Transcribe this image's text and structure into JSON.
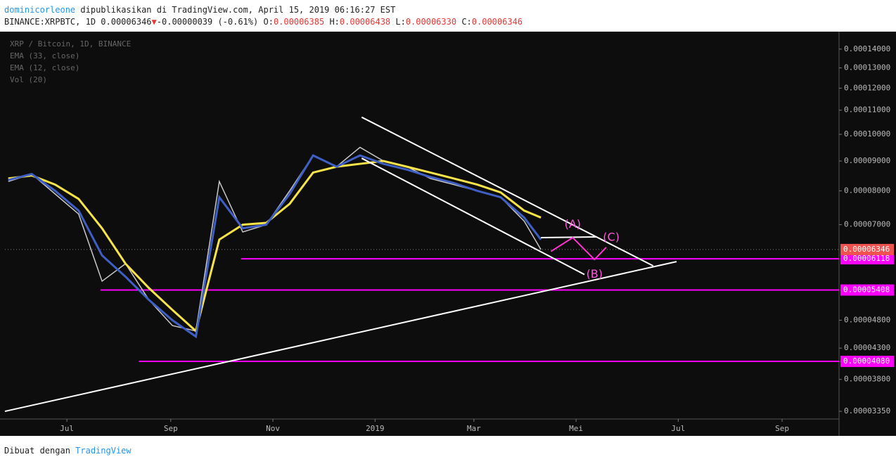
{
  "header": {
    "author": "dominicorleone",
    "published": "dipublikasikan di TradingView.com, April 15, 2019 06:16:27 EST",
    "symbol": "BINANCE:XRPBTC, 1D",
    "last": "0.00006346",
    "arrow": "▼",
    "change": "-0.00000039 (-0.61%)",
    "open_label": "O:",
    "open": "0.00006385",
    "high_label": "H:",
    "high": "0.00006438",
    "low_label": "L:",
    "low": "0.00006330",
    "close_label": "C:",
    "close": "0.00006346"
  },
  "chart_data": {
    "type": "line",
    "legend_lines": [
      "XRP / Bitcoin, 1D, BINANCE",
      "EMA (33, close)",
      "EMA (12, close)",
      "Vol (20)"
    ],
    "x": [
      -35,
      -21,
      -7,
      7,
      21,
      35,
      49,
      63,
      77,
      91,
      105,
      119,
      133,
      147,
      161,
      175,
      189,
      203,
      217,
      231,
      245,
      259,
      273,
      283
    ],
    "series": [
      {
        "name": "XRP / Bitcoin",
        "color": "#c8c8c8",
        "values": [
          8.3e-05,
          8.55e-05,
          7.9e-05,
          7.3e-05,
          5.6e-05,
          6e-05,
          5.2e-05,
          4.7e-05,
          4.6e-05,
          8.3e-05,
          6.8e-05,
          7e-05,
          8e-05,
          9.2e-05,
          8.8e-05,
          9.5e-05,
          9e-05,
          8.8e-05,
          8.4e-05,
          8.2e-05,
          8e-05,
          7.8e-05,
          7.1e-05,
          6.346e-05
        ]
      },
      {
        "name": "EMA (33, close)",
        "color": "#f7e34a",
        "values": [
          8.4e-05,
          8.5e-05,
          8.2e-05,
          7.75e-05,
          6.9e-05,
          6e-05,
          5.45e-05,
          5e-05,
          4.6e-05,
          6.6e-05,
          7e-05,
          7.05e-05,
          7.6e-05,
          8.6e-05,
          8.8e-05,
          8.9e-05,
          9e-05,
          8.8e-05,
          8.6e-05,
          8.4e-05,
          8.2e-05,
          7.95e-05,
          7.4e-05,
          7.2e-05
        ]
      },
      {
        "name": "EMA (12, close)",
        "color": "#3f5fc4",
        "values": [
          8.35e-05,
          8.55e-05,
          8e-05,
          7.4e-05,
          6.2e-05,
          5.7e-05,
          5.2e-05,
          4.8e-05,
          4.5e-05,
          7.8e-05,
          6.9e-05,
          7e-05,
          7.9e-05,
          9.2e-05,
          8.8e-05,
          9.2e-05,
          8.9e-05,
          8.7e-05,
          8.45e-05,
          8.25e-05,
          8e-05,
          7.8e-05,
          7.2e-05,
          6.6e-05
        ]
      }
    ],
    "xlim": [
      -37,
      461
    ],
    "xticks": [
      {
        "value": 0,
        "label": "Jul"
      },
      {
        "value": 62,
        "label": "Sep"
      },
      {
        "value": 123,
        "label": "Nov"
      },
      {
        "value": 184,
        "label": "2019"
      },
      {
        "value": 243,
        "label": "Mar"
      },
      {
        "value": 304,
        "label": "Mei"
      },
      {
        "value": 365,
        "label": "Jul"
      },
      {
        "value": 427,
        "label": "Sep"
      }
    ],
    "ylim": [
      3.25e-05,
      0.00015
    ],
    "yscale": "log",
    "grid": false,
    "yticks": [
      {
        "value": 0.00014,
        "label": "0.00014000"
      },
      {
        "value": 0.00013,
        "label": "0.00013000"
      },
      {
        "value": 0.00012,
        "label": "0.00012000"
      },
      {
        "value": 0.00011,
        "label": "0.00011000"
      },
      {
        "value": 0.0001,
        "label": "0.00010000"
      },
      {
        "value": 9e-05,
        "label": "0.00009000"
      },
      {
        "value": 8e-05,
        "label": "0.00008000"
      },
      {
        "value": 7e-05,
        "label": "0.00007000"
      },
      {
        "value": 4.8e-05,
        "label": "0.00004800"
      },
      {
        "value": 4.3e-05,
        "label": "0.00004300"
      },
      {
        "value": 3.8e-05,
        "label": "0.00003800"
      },
      {
        "value": 3.35e-05,
        "label": "0.00003350"
      }
    ],
    "current_price": {
      "value": 6.346e-05,
      "label": "0.00006346",
      "color": "#ef5350"
    },
    "levels": [
      {
        "value": 6.118e-05,
        "label": "0.00006118",
        "start": 104,
        "color": "#ff00ff"
      },
      {
        "value": 5.408e-05,
        "label": "0.00005408",
        "start": 20,
        "color": "#ff00ff"
      },
      {
        "value": 4.08e-05,
        "label": "0.00004080",
        "start": 43,
        "color": "#ff00ff"
      }
    ],
    "trendlines": [
      {
        "x": [
          176,
          350
        ],
        "y": [
          0.000107,
          5.95e-05
        ],
        "color": "#ffffff"
      },
      {
        "x": [
          176,
          309
        ],
        "y": [
          9.1e-05,
          5.75e-05
        ],
        "color": "#ffffff"
      },
      {
        "x": [
          -37,
          364
        ],
        "y": [
          3.35e-05,
          6.05e-05
        ],
        "color": "#ffffff"
      },
      {
        "x": [
          283,
          316
        ],
        "y": [
          6.65e-05,
          6.67e-05
        ],
        "color": "#ffffff"
      },
      {
        "x": [
          289,
          302,
          315,
          322
        ],
        "y": [
          6.3e-05,
          6.65e-05,
          6.1e-05,
          6.4e-05
        ],
        "color": "#ff33cc"
      }
    ],
    "wave_labels": [
      {
        "text": "(A)",
        "x": 302,
        "y": 7e-05
      },
      {
        "text": "(B)",
        "x": 315,
        "y": 5.75e-05
      },
      {
        "text": "(C)",
        "x": 325,
        "y": 6.65e-05
      }
    ]
  },
  "footer": {
    "made_with": "Dibuat dengan",
    "brand": "TradingView"
  }
}
